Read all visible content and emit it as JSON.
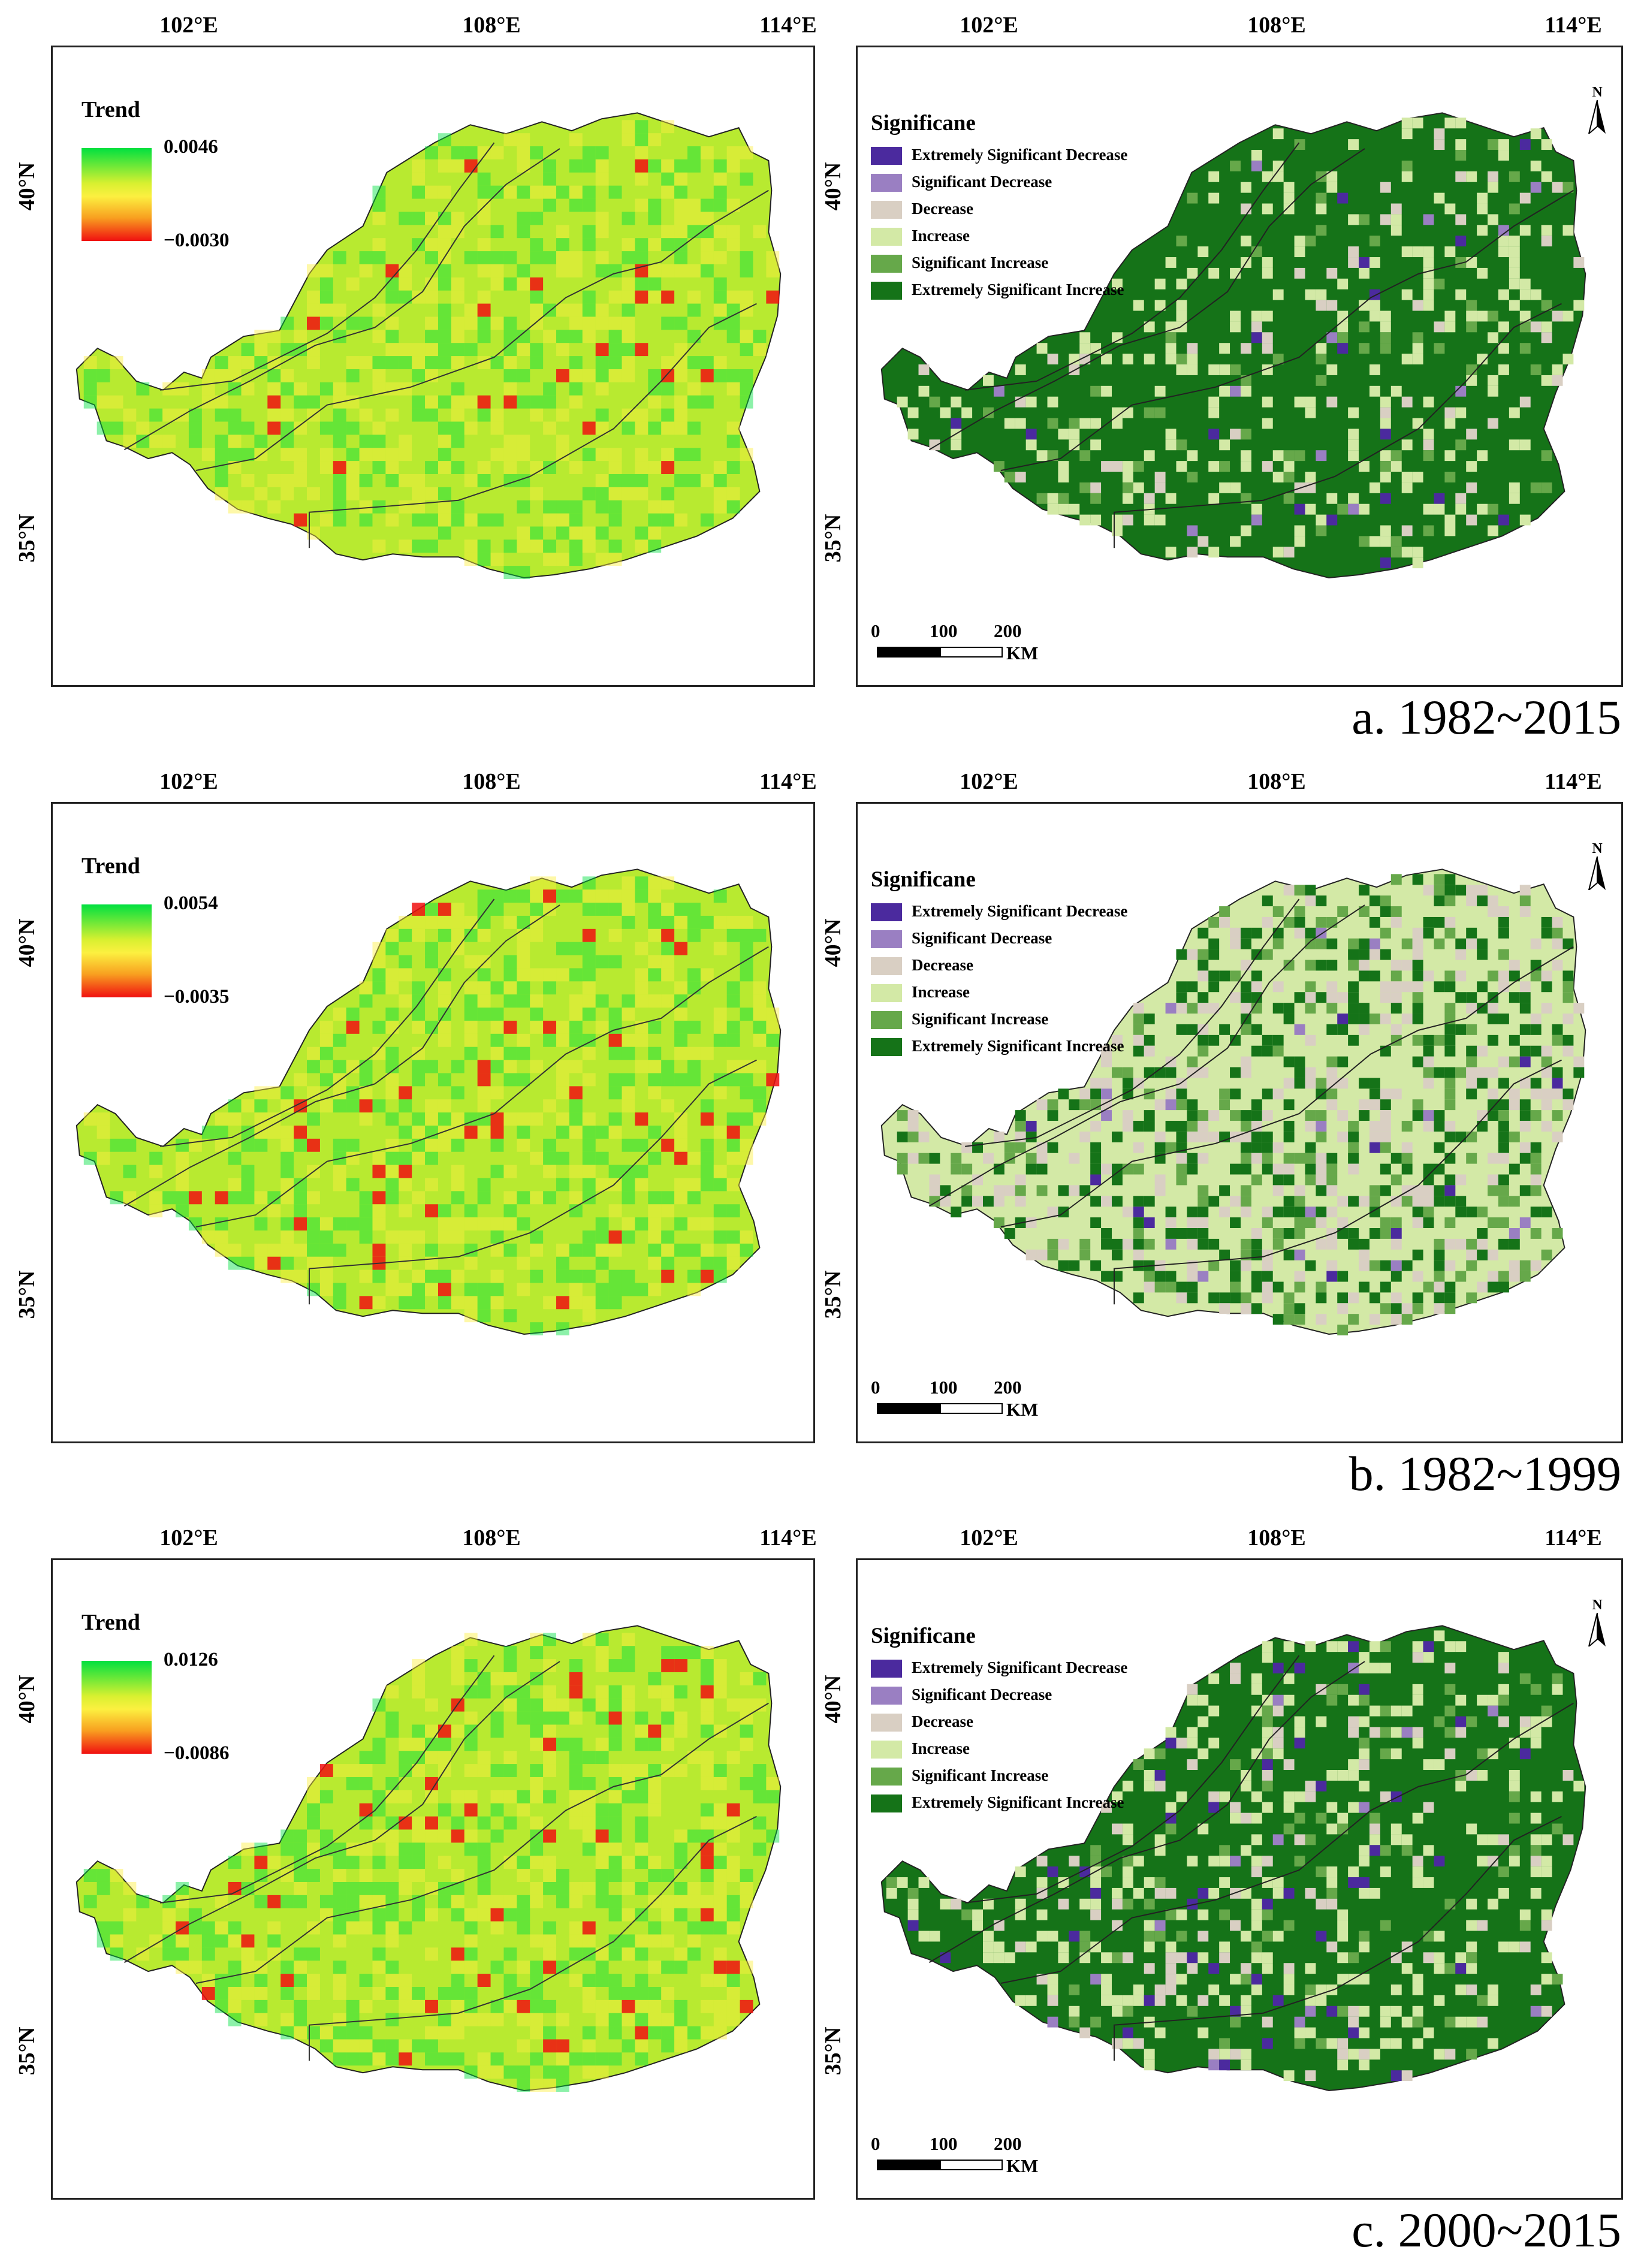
{
  "lon_labels": [
    "102°E",
    "108°E",
    "114°E"
  ],
  "lat_labels": [
    "40°N",
    "35°N"
  ],
  "trend_title": "Trend",
  "significance_title": "Significane",
  "significance_classes": [
    {
      "label": "Extremely Significant Decrease",
      "color": "#4b2a9e"
    },
    {
      "label": "Significant Decrease",
      "color": "#9a7fc2"
    },
    {
      "label": "Decrease",
      "color": "#d9cfc3"
    },
    {
      "label": "Increase",
      "color": "#d3e9a6"
    },
    {
      "label": "Significant Increase",
      "color": "#66a84a"
    },
    {
      "label": "Extremely Significant Increase",
      "color": "#157318"
    }
  ],
  "trend_colors": {
    "high": "#00e040",
    "mid": "#fcf040",
    "low": "#f01010"
  },
  "north_label": "N",
  "scale": {
    "ticks": [
      "0",
      "100",
      "200"
    ],
    "unit": "KM"
  },
  "panels": [
    {
      "caption": "a. 1982~2015",
      "trend_max": "0.0046",
      "trend_min": "−0.0030",
      "sig_shares": {
        "Extremely Significant Decrease": 0.01,
        "Significant Decrease": 0.01,
        "Decrease": 0.03,
        "Increase": 0.15,
        "Significant Increase": 0.05,
        "Extremely Significant Increase": 0.75
      }
    },
    {
      "caption": "b. 1982~1999",
      "trend_max": "0.0054",
      "trend_min": "−0.0035",
      "sig_shares": {
        "Extremely Significant Decrease": 0.005,
        "Significant Decrease": 0.005,
        "Decrease": 0.15,
        "Increase": 0.55,
        "Significant Increase": 0.1,
        "Extremely Significant Increase": 0.19
      }
    },
    {
      "caption": "c. 2000~2015",
      "trend_max": "0.0126",
      "trend_min": "−0.0086",
      "sig_shares": {
        "Extremely Significant Decrease": 0.02,
        "Significant Decrease": 0.01,
        "Decrease": 0.06,
        "Increase": 0.16,
        "Significant Increase": 0.05,
        "Extremely Significant Increase": 0.7
      }
    }
  ]
}
